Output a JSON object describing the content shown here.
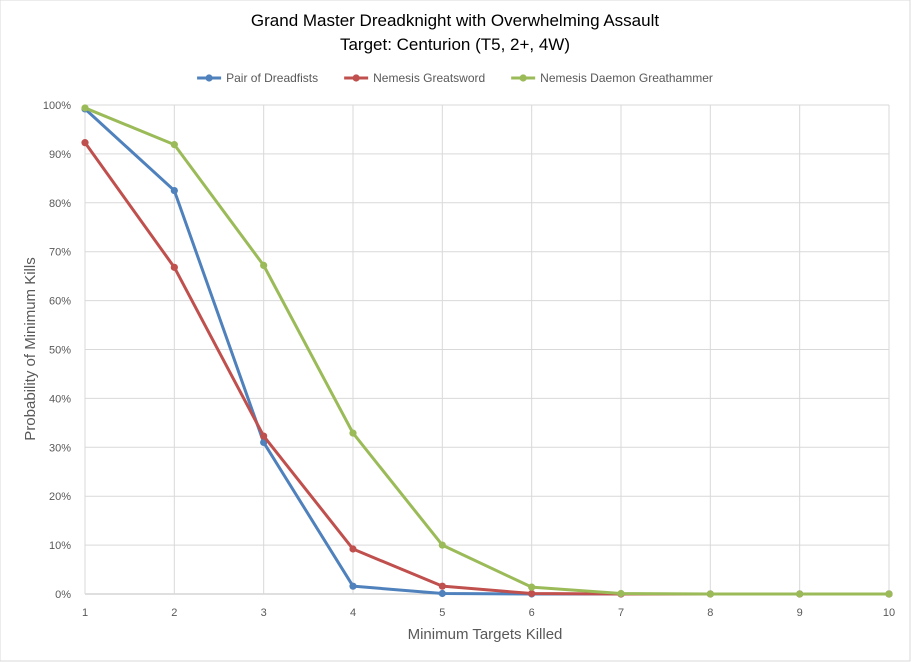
{
  "chart_data": {
    "type": "line",
    "title": "Grand Master Dreadknight with Overwhelming Assault",
    "subtitle": "Target: Centurion (T5, 2+, 4W)",
    "xlabel": "Minimum Targets Killed",
    "ylabel": "Probability of Minimum Kills",
    "x": [
      1,
      2,
      3,
      4,
      5,
      6,
      7,
      8,
      9,
      10
    ],
    "x_tick_labels": [
      "1",
      "2",
      "3",
      "4",
      "5",
      "6",
      "7",
      "8",
      "9",
      "10"
    ],
    "y_tick_labels": [
      "0%",
      "10%",
      "20%",
      "30%",
      "40%",
      "50%",
      "60%",
      "70%",
      "80%",
      "90%",
      "100%"
    ],
    "ylim": [
      0,
      100
    ],
    "xlim": [
      1,
      10
    ],
    "grid": true,
    "legend_position": "top",
    "series": [
      {
        "name": "Pair of Dreadfists",
        "color": "#4f81bd",
        "values": [
          99.2,
          82.5,
          31.0,
          1.6,
          0.1,
          0.0,
          0.0,
          0.0,
          0.0,
          0.0
        ]
      },
      {
        "name": "Nemesis Greatsword",
        "color": "#c0504d",
        "values": [
          92.3,
          66.8,
          32.3,
          9.2,
          1.6,
          0.1,
          0.0,
          0.0,
          0.0,
          0.0
        ]
      },
      {
        "name": "Nemesis Daemon Greathammer",
        "color": "#9bbb59",
        "values": [
          99.4,
          91.9,
          67.2,
          32.9,
          10.0,
          1.4,
          0.1,
          0.0,
          0.0,
          0.0
        ]
      }
    ]
  }
}
